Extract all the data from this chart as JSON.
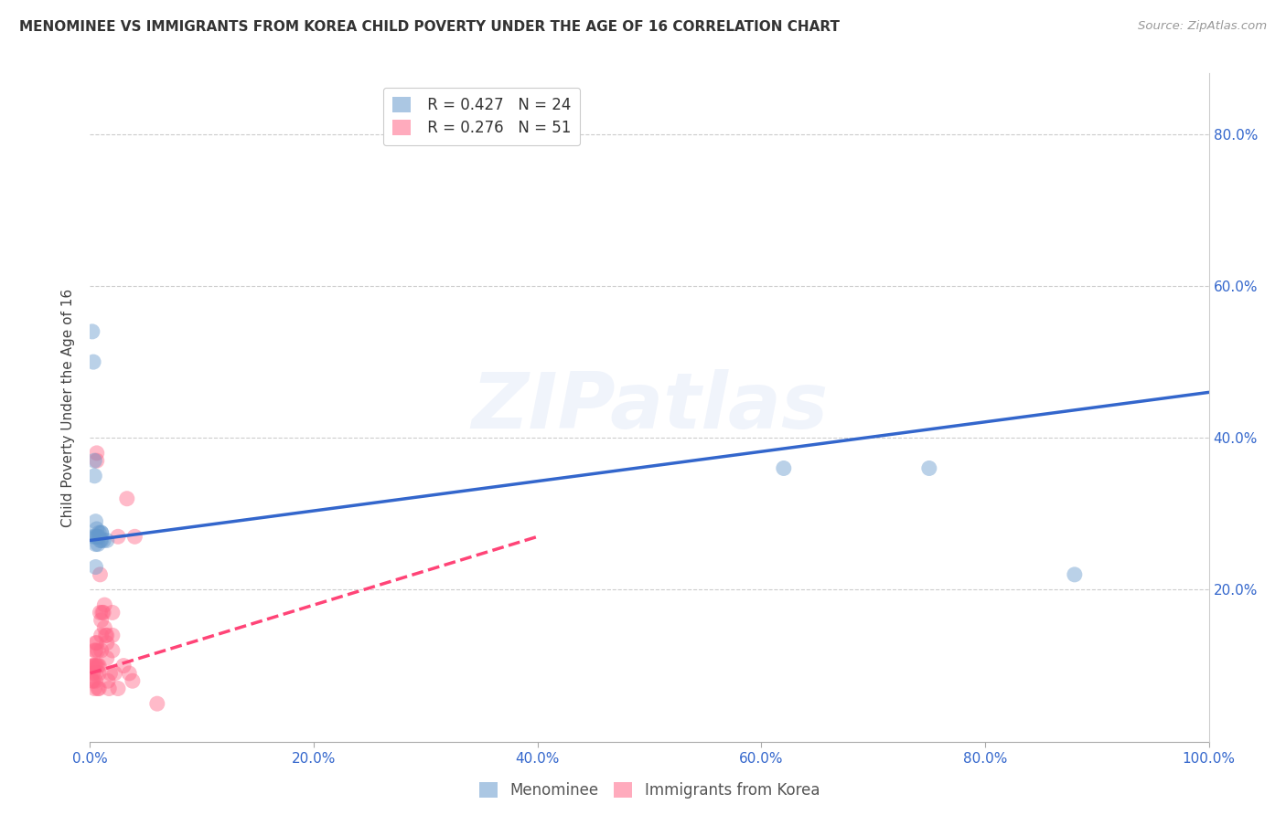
{
  "title": "MENOMINEE VS IMMIGRANTS FROM KOREA CHILD POVERTY UNDER THE AGE OF 16 CORRELATION CHART",
  "source": "Source: ZipAtlas.com",
  "ylabel": "Child Poverty Under the Age of 16",
  "xlabel": "",
  "xlim": [
    0,
    1.0
  ],
  "ylim": [
    0,
    0.88
  ],
  "xtick_labels": [
    "0.0%",
    "20.0%",
    "40.0%",
    "60.0%",
    "80.0%",
    "100.0%"
  ],
  "xtick_vals": [
    0,
    0.2,
    0.4,
    0.6,
    0.8,
    1.0
  ],
  "ytick_labels": [
    "20.0%",
    "40.0%",
    "60.0%",
    "80.0%"
  ],
  "ytick_vals": [
    0.2,
    0.4,
    0.6,
    0.8
  ],
  "right_ytick_labels": [
    "20.0%",
    "40.0%",
    "60.0%",
    "80.0%"
  ],
  "right_ytick_vals": [
    0.2,
    0.4,
    0.6,
    0.8
  ],
  "menominee_R": "0.427",
  "menominee_N": "24",
  "korea_R": "0.276",
  "korea_N": "51",
  "menominee_color": "#6699CC",
  "korea_color": "#FF6688",
  "menominee_line_color": "#3366CC",
  "korea_line_color": "#FF4477",
  "watermark_text": "ZIPatlas",
  "background_color": "#ffffff",
  "grid_color": "#cccccc",
  "menominee_x": [
    0.002,
    0.003,
    0.003,
    0.004,
    0.004,
    0.005,
    0.005,
    0.005,
    0.005,
    0.006,
    0.006,
    0.007,
    0.007,
    0.008,
    0.008,
    0.009,
    0.01,
    0.01,
    0.01,
    0.012,
    0.015,
    0.62,
    0.75,
    0.88
  ],
  "menominee_y": [
    0.54,
    0.5,
    0.27,
    0.37,
    0.35,
    0.26,
    0.27,
    0.29,
    0.23,
    0.27,
    0.28,
    0.27,
    0.26,
    0.275,
    0.27,
    0.265,
    0.265,
    0.275,
    0.275,
    0.265,
    0.265,
    0.36,
    0.36,
    0.22
  ],
  "korea_x": [
    0.002,
    0.002,
    0.003,
    0.003,
    0.003,
    0.004,
    0.004,
    0.004,
    0.005,
    0.005,
    0.005,
    0.005,
    0.005,
    0.006,
    0.006,
    0.006,
    0.006,
    0.007,
    0.007,
    0.007,
    0.008,
    0.008,
    0.008,
    0.009,
    0.009,
    0.01,
    0.01,
    0.01,
    0.011,
    0.012,
    0.013,
    0.013,
    0.014,
    0.015,
    0.015,
    0.015,
    0.016,
    0.017,
    0.018,
    0.02,
    0.02,
    0.02,
    0.022,
    0.025,
    0.025,
    0.03,
    0.033,
    0.035,
    0.038,
    0.04,
    0.06
  ],
  "korea_y": [
    0.1,
    0.08,
    0.1,
    0.09,
    0.08,
    0.12,
    0.1,
    0.07,
    0.13,
    0.12,
    0.1,
    0.09,
    0.08,
    0.38,
    0.37,
    0.13,
    0.1,
    0.12,
    0.1,
    0.07,
    0.1,
    0.09,
    0.07,
    0.22,
    0.17,
    0.16,
    0.14,
    0.12,
    0.17,
    0.17,
    0.18,
    0.15,
    0.14,
    0.14,
    0.13,
    0.11,
    0.08,
    0.07,
    0.09,
    0.17,
    0.14,
    0.12,
    0.09,
    0.27,
    0.07,
    0.1,
    0.32,
    0.09,
    0.08,
    0.27,
    0.05
  ],
  "menominee_line_x": [
    0.0,
    1.0
  ],
  "menominee_line_y": [
    0.265,
    0.46
  ],
  "korea_line_x": [
    0.0,
    0.4
  ],
  "korea_line_y": [
    0.09,
    0.27
  ]
}
